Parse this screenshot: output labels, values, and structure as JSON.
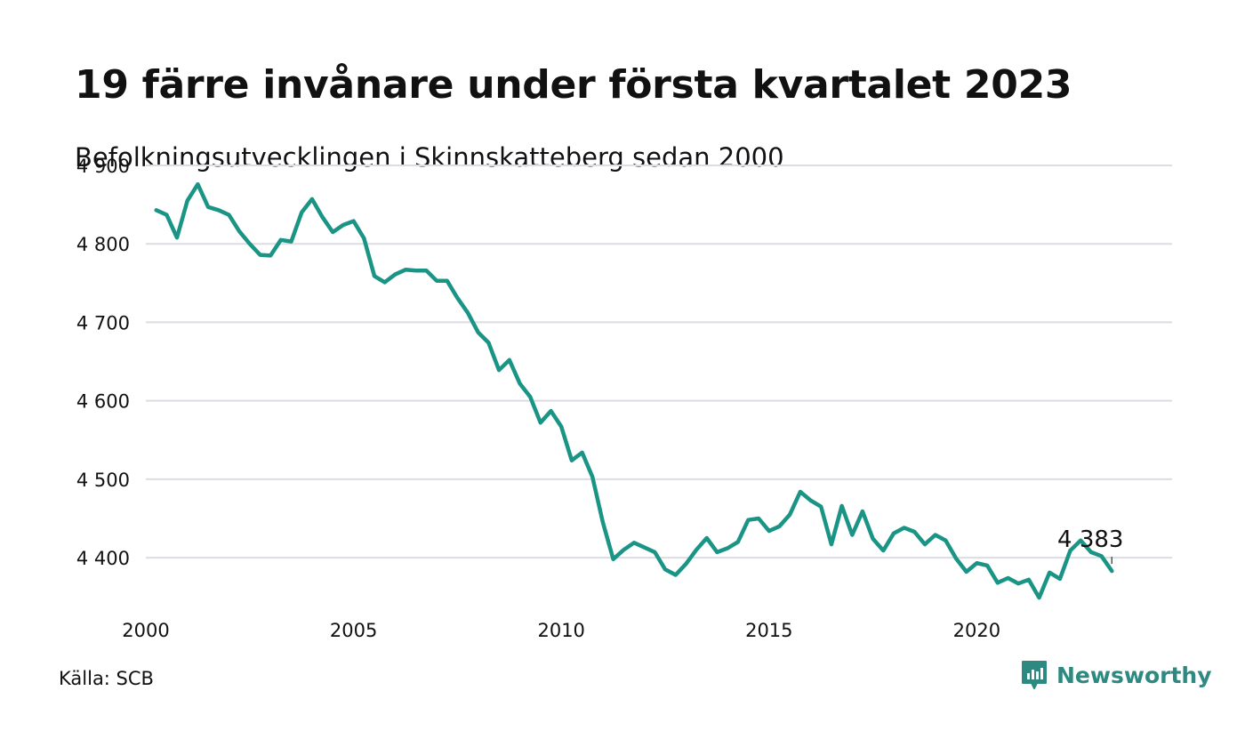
{
  "title": "19 färre invånare under första kvartalet 2023",
  "subtitle": "Befolkningsutvecklingen i Skinnskatteberg sedan 2000",
  "source": "Källa: SCB",
  "brand": {
    "name": "Newsworthy",
    "icon": "newsworthy-logo-icon",
    "color": "#2e8a80"
  },
  "colors": {
    "line": "#1a9485",
    "grid": "#dcdce2",
    "text": "#111111"
  },
  "chart_data": {
    "type": "line",
    "title": "19 färre invånare under första kvartalet 2023",
    "subtitle": "Befolkningsutvecklingen i Skinnskatteberg sedan 2000",
    "xlabel": "",
    "ylabel": "",
    "xlim": [
      2000,
      2024.7
    ],
    "ylim": [
      4340,
      4900
    ],
    "x_ticks": [
      {
        "value": 2000,
        "label": "2000"
      },
      {
        "value": 2005,
        "label": "2005"
      },
      {
        "value": 2010,
        "label": "2010"
      },
      {
        "value": 2015,
        "label": "2015"
      },
      {
        "value": 2020,
        "label": "2020"
      }
    ],
    "y_ticks": [
      {
        "value": 4400,
        "label": "4 400"
      },
      {
        "value": 4500,
        "label": "4 500"
      },
      {
        "value": 4600,
        "label": "4 600"
      },
      {
        "value": 4700,
        "label": "4 700"
      },
      {
        "value": 4800,
        "label": "4 800"
      },
      {
        "value": 4900,
        "label": "4 900"
      }
    ],
    "grid": true,
    "legend": "none",
    "annotation": {
      "label": "4 383",
      "x": 2023.25,
      "y": 4383
    },
    "series": [
      {
        "x": [
          2000.25,
          2000.5,
          2000.75,
          2001.0,
          2001.25,
          2001.5,
          2001.75,
          2002.0,
          2002.25,
          2002.5,
          2002.75,
          2003.0,
          2003.25,
          2003.5,
          2003.75,
          2004.0,
          2004.25,
          2004.5,
          2004.75,
          2005.0,
          2005.25,
          2005.5,
          2005.75,
          2006.0,
          2006.25,
          2006.5,
          2006.75,
          2007.0,
          2007.25,
          2007.5,
          2007.75,
          2008.0,
          2008.25,
          2008.5,
          2008.75,
          2009.0,
          2009.25,
          2009.5,
          2009.75,
          2010.0,
          2010.25,
          2010.5,
          2010.75,
          2011.0,
          2011.25,
          2011.5,
          2011.75,
          2012.0,
          2012.25,
          2012.5,
          2012.75,
          2013.0,
          2013.25,
          2013.5,
          2013.75,
          2014.0,
          2014.25,
          2014.5,
          2014.75,
          2015.0,
          2015.25,
          2015.5,
          2015.75,
          2016.0,
          2016.25,
          2016.5,
          2016.75,
          2017.0,
          2017.25,
          2017.5,
          2017.75,
          2018.0,
          2018.25,
          2018.5,
          2018.75,
          2019.0,
          2019.25,
          2019.5,
          2019.75,
          2020.0,
          2020.25,
          2020.5,
          2020.75,
          2021.0,
          2021.25,
          2021.5,
          2021.75,
          2022.0,
          2022.25,
          2022.5,
          2022.75,
          2023.0,
          2023.25
        ],
        "y": [
          4843,
          4837,
          4808,
          4855,
          4876,
          4847,
          4843,
          4837,
          4816,
          4800,
          4786,
          4785,
          4805,
          4803,
          4840,
          4857,
          4834,
          4815,
          4824,
          4829,
          4807,
          4759,
          4751,
          4761,
          4767,
          4766,
          4766,
          4753,
          4753,
          4731,
          4712,
          4687,
          4674,
          4639,
          4652,
          4622,
          4605,
          4572,
          4587,
          4567,
          4524,
          4534,
          4503,
          4445,
          4398,
          4410,
          4419,
          4413,
          4407,
          4385,
          4378,
          4392,
          4410,
          4425,
          4407,
          4412,
          4420,
          4448,
          4450,
          4434,
          4440,
          4455,
          4484,
          4473,
          4465,
          4417,
          4466,
          4429,
          4459,
          4424,
          4409,
          4431,
          4438,
          4433,
          4417,
          4429,
          4422,
          4399,
          4382,
          4393,
          4390,
          4368,
          4374,
          4367,
          4372,
          4349,
          4381,
          4373,
          4409,
          4422,
          4407,
          4402,
          4383
        ]
      }
    ]
  }
}
